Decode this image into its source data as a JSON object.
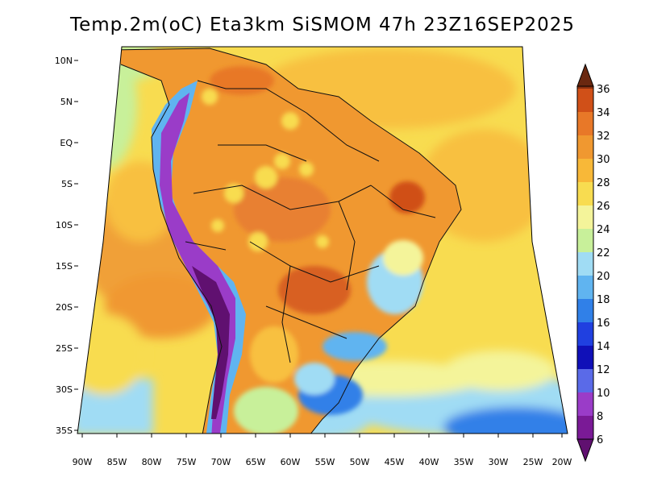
{
  "title": "Temp.2m(oC) Eta3km SiSMOM 47h 23Z16SEP2025",
  "map": {
    "lat_labels": [
      "10N",
      "5N",
      "EQ",
      "5S",
      "10S",
      "15S",
      "20S",
      "25S",
      "30S",
      "35S"
    ],
    "lon_labels": [
      "90W",
      "85W",
      "80W",
      "75W",
      "70W",
      "65W",
      "60W",
      "55W",
      "50W",
      "45W",
      "40W",
      "35W",
      "30W",
      "25W",
      "20W"
    ]
  },
  "colorbar": {
    "labels": [
      "6",
      "8",
      "10",
      "12",
      "14",
      "16",
      "18",
      "20",
      "22",
      "24",
      "26",
      "28",
      "30",
      "32",
      "34",
      "36"
    ],
    "colors": [
      "#7a1a96",
      "#9a3cc8",
      "#5a6ae8",
      "#1010b8",
      "#2040e0",
      "#3080e8",
      "#60b4f0",
      "#a0dcf4",
      "#c8f09a",
      "#f4f49a",
      "#f8dc50",
      "#f8b838",
      "#f09830",
      "#e87828",
      "#d05018",
      "#8a3010"
    ],
    "under_color": "#601070",
    "over_color": "#6a2810"
  }
}
